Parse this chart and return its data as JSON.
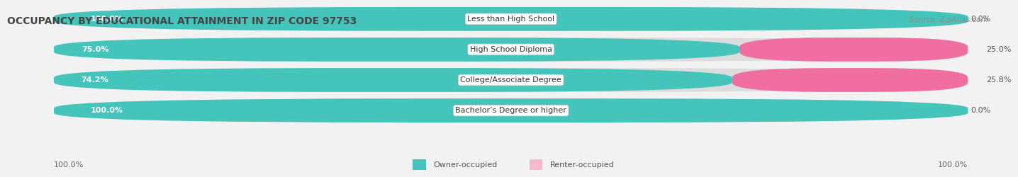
{
  "title": "OCCUPANCY BY EDUCATIONAL ATTAINMENT IN ZIP CODE 97753",
  "source": "Source: ZipAtlas.com",
  "categories": [
    "Less than High School",
    "High School Diploma",
    "College/Associate Degree",
    "Bachelor’s Degree or higher"
  ],
  "owner_pct": [
    100.0,
    75.0,
    74.2,
    100.0
  ],
  "renter_pct": [
    0.0,
    25.0,
    25.8,
    0.0
  ],
  "owner_color": "#45C4BC",
  "renter_color": "#F06FA0",
  "renter_color_light": "#F8B8CF",
  "bg_color": "#f2f2f2",
  "bar_bg_color": "#e0e0e0",
  "title_fontsize": 10,
  "label_fontsize": 8,
  "cat_fontsize": 8,
  "axis_label_fontsize": 8,
  "legend_fontsize": 8,
  "source_fontsize": 7.5,
  "axis_left_label": "100.0%",
  "axis_right_label": "100.0%"
}
